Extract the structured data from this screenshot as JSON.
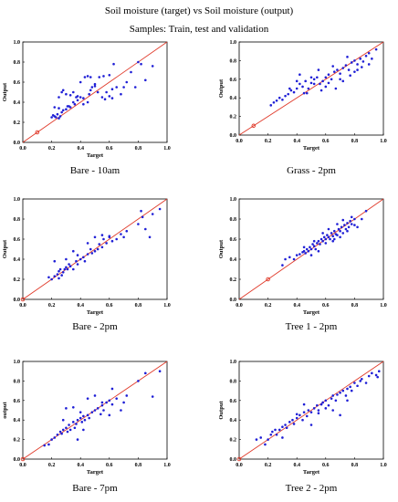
{
  "figure": {
    "title": "Soil moisture (target) vs Soil moisture (output)",
    "subtitle": "Samples: Train, test and validation",
    "point_color": "#1f1fd6",
    "line_color": "#e03a2a",
    "origin_marker_color": "#e03a2a"
  },
  "chart_data": [
    {
      "type": "scatter",
      "title": "Bare - 10am",
      "xlabel": "Target",
      "ylabel": "Output",
      "xlim": [
        0,
        1
      ],
      "ylim": [
        0,
        1
      ],
      "xticks": [
        "0.0",
        "0.2",
        "0.4",
        "0.6",
        "0.8",
        "1.0"
      ],
      "yticks": [
        "0.0",
        "0.2",
        "0.4",
        "0.6",
        "0.8",
        "1.0"
      ],
      "reference_line": "y = x",
      "highlight_point": [
        0.1,
        0.1
      ],
      "x": [
        0.2,
        0.21,
        0.22,
        0.23,
        0.24,
        0.25,
        0.26,
        0.27,
        0.28,
        0.22,
        0.25,
        0.3,
        0.32,
        0.33,
        0.35,
        0.36,
        0.38,
        0.4,
        0.42,
        0.27,
        0.3,
        0.33,
        0.35,
        0.37,
        0.38,
        0.42,
        0.45,
        0.46,
        0.47,
        0.48,
        0.5,
        0.52,
        0.55,
        0.57,
        0.58,
        0.6,
        0.62,
        0.65,
        0.68,
        0.7,
        0.72,
        0.75,
        0.8,
        0.82,
        0.85,
        0.9,
        0.25,
        0.28,
        0.31,
        0.4,
        0.43,
        0.47,
        0.5,
        0.53,
        0.56,
        0.6,
        0.63,
        0.45,
        0.62,
        0.78
      ],
      "y": [
        0.25,
        0.27,
        0.26,
        0.25,
        0.28,
        0.24,
        0.26,
        0.3,
        0.32,
        0.35,
        0.34,
        0.33,
        0.36,
        0.35,
        0.4,
        0.38,
        0.42,
        0.45,
        0.44,
        0.5,
        0.48,
        0.47,
        0.5,
        0.45,
        0.46,
        0.38,
        0.4,
        0.48,
        0.52,
        0.55,
        0.58,
        0.5,
        0.45,
        0.43,
        0.5,
        0.46,
        0.53,
        0.55,
        0.48,
        0.55,
        0.6,
        0.7,
        0.8,
        0.78,
        0.62,
        0.76,
        0.45,
        0.52,
        0.36,
        0.6,
        0.65,
        0.65,
        0.56,
        0.65,
        0.66,
        0.67,
        0.78,
        0.66,
        0.44,
        0.55
      ]
    },
    {
      "type": "scatter",
      "title": "Grass - 2pm",
      "xlabel": "Target",
      "ylabel": "Output",
      "xlim": [
        0,
        1
      ],
      "ylim": [
        0,
        1
      ],
      "xticks": [
        "0.0",
        "0.2",
        "0.4",
        "0.6",
        "0.8",
        "1.0"
      ],
      "yticks": [
        "0.0",
        "0.2",
        "0.4",
        "0.6",
        "0.8",
        "1.0"
      ],
      "reference_line": "y = x",
      "highlight_point": [
        0.1,
        0.1
      ],
      "x": [
        0.22,
        0.24,
        0.26,
        0.28,
        0.3,
        0.32,
        0.34,
        0.36,
        0.38,
        0.4,
        0.42,
        0.44,
        0.46,
        0.48,
        0.5,
        0.52,
        0.54,
        0.56,
        0.58,
        0.6,
        0.62,
        0.64,
        0.66,
        0.68,
        0.7,
        0.72,
        0.74,
        0.76,
        0.78,
        0.8,
        0.82,
        0.84,
        0.86,
        0.88,
        0.9,
        0.92,
        0.35,
        0.4,
        0.45,
        0.5,
        0.55,
        0.6,
        0.65,
        0.7,
        0.75,
        0.8,
        0.85,
        0.9,
        0.95,
        0.42,
        0.47,
        0.52,
        0.57,
        0.62,
        0.67,
        0.72,
        0.77,
        0.82
      ],
      "y": [
        0.32,
        0.35,
        0.37,
        0.4,
        0.38,
        0.42,
        0.44,
        0.48,
        0.46,
        0.5,
        0.55,
        0.52,
        0.58,
        0.5,
        0.56,
        0.6,
        0.62,
        0.55,
        0.58,
        0.62,
        0.65,
        0.6,
        0.68,
        0.7,
        0.66,
        0.72,
        0.75,
        0.7,
        0.78,
        0.8,
        0.76,
        0.82,
        0.79,
        0.85,
        0.88,
        0.82,
        0.5,
        0.58,
        0.45,
        0.62,
        0.7,
        0.52,
        0.74,
        0.6,
        0.84,
        0.68,
        0.73,
        0.76,
        0.92,
        0.65,
        0.45,
        0.55,
        0.48,
        0.56,
        0.5,
        0.58,
        0.64,
        0.7
      ]
    },
    {
      "type": "scatter",
      "title": "Bare - 2pm",
      "xlabel": "Target",
      "ylabel": "Output",
      "xlim": [
        0,
        1
      ],
      "ylim": [
        0,
        1
      ],
      "xticks": [
        "0.0",
        "0.2",
        "0.4",
        "0.6",
        "0.8",
        "1.0"
      ],
      "yticks": [
        "0.0",
        "0.2",
        "0.4",
        "0.6",
        "0.8",
        "1.0"
      ],
      "reference_line": "y = x",
      "highlight_point": [
        0.0,
        0.0
      ],
      "x": [
        0.18,
        0.2,
        0.22,
        0.24,
        0.25,
        0.26,
        0.27,
        0.28,
        0.29,
        0.3,
        0.31,
        0.32,
        0.33,
        0.35,
        0.37,
        0.38,
        0.4,
        0.42,
        0.43,
        0.45,
        0.47,
        0.48,
        0.5,
        0.52,
        0.53,
        0.55,
        0.56,
        0.58,
        0.6,
        0.62,
        0.65,
        0.68,
        0.7,
        0.72,
        0.8,
        0.82,
        0.83,
        0.85,
        0.88,
        0.9,
        0.95,
        0.22,
        0.3,
        0.38,
        0.45,
        0.5,
        0.55,
        0.6,
        0.25,
        0.35
      ],
      "y": [
        0.22,
        0.2,
        0.23,
        0.25,
        0.28,
        0.3,
        0.24,
        0.27,
        0.3,
        0.32,
        0.3,
        0.35,
        0.33,
        0.3,
        0.38,
        0.35,
        0.4,
        0.42,
        0.38,
        0.45,
        0.5,
        0.46,
        0.48,
        0.5,
        0.55,
        0.52,
        0.6,
        0.56,
        0.62,
        0.58,
        0.6,
        0.65,
        0.62,
        0.68,
        0.75,
        0.88,
        0.82,
        0.7,
        0.62,
        0.85,
        0.9,
        0.38,
        0.4,
        0.44,
        0.56,
        0.62,
        0.64,
        0.63,
        0.21,
        0.48
      ]
    },
    {
      "type": "scatter",
      "title": "Tree 1 - 2pm",
      "xlabel": "Target",
      "ylabel": "Output",
      "xlim": [
        0,
        1
      ],
      "ylim": [
        0,
        1
      ],
      "xticks": [
        "0.0",
        "0.2",
        "0.4",
        "0.6",
        "0.8",
        "1.0"
      ],
      "yticks": [
        "0.0",
        "0.2",
        "0.4",
        "0.6",
        "0.8",
        "1.0"
      ],
      "reference_line": "y = x",
      "highlight_point": [
        0.2,
        0.2
      ],
      "x": [
        0.3,
        0.32,
        0.35,
        0.38,
        0.4,
        0.42,
        0.44,
        0.45,
        0.46,
        0.47,
        0.48,
        0.49,
        0.5,
        0.51,
        0.52,
        0.53,
        0.54,
        0.55,
        0.56,
        0.57,
        0.58,
        0.59,
        0.6,
        0.61,
        0.62,
        0.63,
        0.64,
        0.65,
        0.66,
        0.67,
        0.68,
        0.69,
        0.7,
        0.71,
        0.72,
        0.73,
        0.74,
        0.75,
        0.76,
        0.77,
        0.78,
        0.8,
        0.82,
        0.85,
        0.88,
        0.5,
        0.55,
        0.6,
        0.65,
        0.7,
        0.75,
        0.8,
        0.45,
        0.58,
        0.62,
        0.68,
        0.72,
        0.78,
        0.52,
        0.66
      ],
      "y": [
        0.34,
        0.4,
        0.42,
        0.4,
        0.44,
        0.45,
        0.47,
        0.48,
        0.46,
        0.5,
        0.48,
        0.52,
        0.5,
        0.55,
        0.53,
        0.5,
        0.56,
        0.58,
        0.55,
        0.6,
        0.58,
        0.62,
        0.6,
        0.64,
        0.62,
        0.6,
        0.66,
        0.63,
        0.68,
        0.65,
        0.64,
        0.7,
        0.68,
        0.72,
        0.66,
        0.74,
        0.7,
        0.76,
        0.72,
        0.78,
        0.75,
        0.8,
        0.72,
        0.8,
        0.88,
        0.44,
        0.48,
        0.56,
        0.58,
        0.62,
        0.68,
        0.74,
        0.52,
        0.66,
        0.7,
        0.75,
        0.79,
        0.82,
        0.58,
        0.6
      ]
    },
    {
      "type": "scatter",
      "title": "Bare - 7pm",
      "xlabel": "Target",
      "ylabel": "output",
      "xlim": [
        0,
        1
      ],
      "ylim": [
        0,
        1
      ],
      "xticks": [
        "0.0",
        "0.2",
        "0.4",
        "0.6",
        "0.8",
        "1.0"
      ],
      "yticks": [
        "0.0",
        "0.2",
        "0.4",
        "0.6",
        "0.8",
        "1.0"
      ],
      "reference_line": "y = x",
      "highlight_point": [
        0.0,
        0.0
      ],
      "x": [
        0.15,
        0.18,
        0.2,
        0.22,
        0.24,
        0.26,
        0.27,
        0.28,
        0.3,
        0.31,
        0.32,
        0.33,
        0.35,
        0.36,
        0.37,
        0.38,
        0.4,
        0.41,
        0.42,
        0.43,
        0.45,
        0.46,
        0.48,
        0.5,
        0.52,
        0.54,
        0.55,
        0.56,
        0.58,
        0.6,
        0.62,
        0.65,
        0.68,
        0.7,
        0.72,
        0.8,
        0.85,
        0.9,
        0.95,
        0.3,
        0.35,
        0.4,
        0.45,
        0.5,
        0.55,
        0.6,
        0.62,
        0.28,
        0.38,
        0.42
      ],
      "y": [
        0.14,
        0.15,
        0.2,
        0.22,
        0.25,
        0.28,
        0.26,
        0.3,
        0.32,
        0.28,
        0.35,
        0.3,
        0.38,
        0.32,
        0.36,
        0.4,
        0.42,
        0.38,
        0.44,
        0.4,
        0.45,
        0.42,
        0.48,
        0.5,
        0.52,
        0.46,
        0.55,
        0.5,
        0.58,
        0.6,
        0.56,
        0.62,
        0.5,
        0.58,
        0.65,
        0.8,
        0.88,
        0.64,
        0.9,
        0.52,
        0.53,
        0.48,
        0.62,
        0.65,
        0.58,
        0.45,
        0.72,
        0.4,
        0.2,
        0.3
      ]
    },
    {
      "type": "scatter",
      "title": "Tree 2 - 2pm",
      "xlabel": "Target",
      "ylabel": "Output",
      "xlim": [
        0,
        1
      ],
      "ylim": [
        0,
        1
      ],
      "xticks": [
        "0.0",
        "0.2",
        "0.4",
        "0.6",
        "0.8",
        "1.0"
      ],
      "yticks": [
        "0.0",
        "0.2",
        "0.4",
        "0.6",
        "0.8",
        "1.0"
      ],
      "reference_line": "y = x",
      "highlight_point": [
        0.0,
        0.0
      ],
      "x": [
        0.12,
        0.15,
        0.18,
        0.2,
        0.22,
        0.23,
        0.25,
        0.26,
        0.28,
        0.3,
        0.32,
        0.33,
        0.35,
        0.37,
        0.38,
        0.4,
        0.42,
        0.44,
        0.45,
        0.47,
        0.48,
        0.5,
        0.52,
        0.54,
        0.55,
        0.57,
        0.58,
        0.6,
        0.62,
        0.64,
        0.65,
        0.67,
        0.68,
        0.7,
        0.72,
        0.74,
        0.75,
        0.77,
        0.78,
        0.8,
        0.82,
        0.84,
        0.85,
        0.88,
        0.9,
        0.92,
        0.95,
        0.96,
        0.97,
        0.3,
        0.4,
        0.5,
        0.6,
        0.65,
        0.7,
        0.75,
        0.45,
        0.55
      ],
      "y": [
        0.2,
        0.22,
        0.15,
        0.2,
        0.25,
        0.28,
        0.3,
        0.25,
        0.3,
        0.33,
        0.35,
        0.32,
        0.38,
        0.4,
        0.36,
        0.42,
        0.45,
        0.4,
        0.48,
        0.44,
        0.5,
        0.48,
        0.52,
        0.55,
        0.5,
        0.56,
        0.58,
        0.6,
        0.55,
        0.62,
        0.65,
        0.6,
        0.66,
        0.68,
        0.7,
        0.65,
        0.72,
        0.74,
        0.7,
        0.78,
        0.75,
        0.8,
        0.82,
        0.78,
        0.85,
        0.88,
        0.86,
        0.84,
        0.9,
        0.22,
        0.46,
        0.35,
        0.52,
        0.5,
        0.45,
        0.6,
        0.56,
        0.47
      ]
    }
  ]
}
